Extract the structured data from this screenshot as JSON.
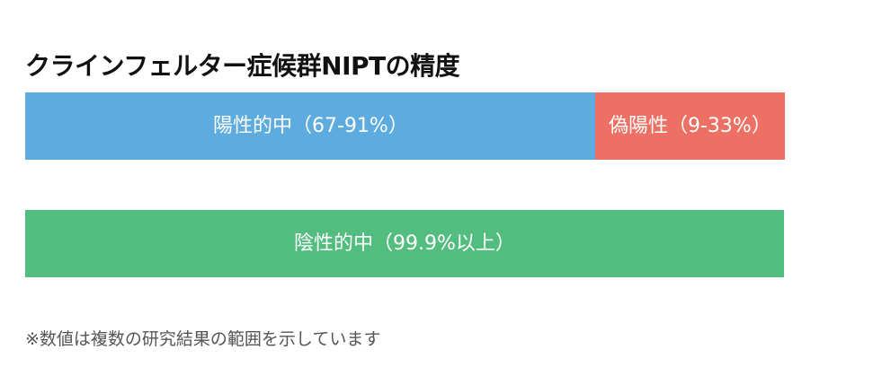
{
  "title": "クラインフェルター症候群NIPTの精度",
  "note": "※数値は複数の研究結果の範囲を示しています",
  "colors": {
    "positive_hit": "#5dabdf",
    "false_positive": "#ec7164",
    "negative_hit": "#53bd7f",
    "label_text": "#ffffff"
  },
  "chart_data": [
    {
      "type": "bar",
      "orientation": "horizontal",
      "stacked": true,
      "segments": [
        {
          "label": "陽性的中（67-91%）",
          "value": 75
        },
        {
          "label": "偽陽性（9-33%）",
          "value": 25
        }
      ]
    },
    {
      "type": "bar",
      "orientation": "horizontal",
      "segments": [
        {
          "label": "陰性的中（99.9%以上）",
          "value": 99.9
        }
      ]
    }
  ]
}
